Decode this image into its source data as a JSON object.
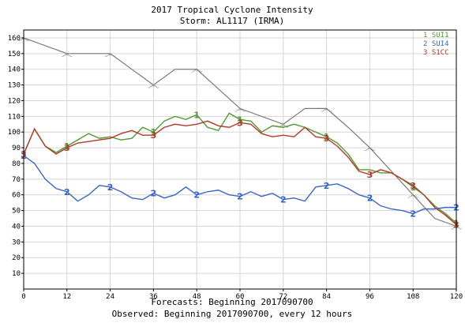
{
  "chart_data": {
    "type": "line",
    "title": "2017 Tropical Cyclone Intensity",
    "subtitle": "Storm: AL1117 (IRMA)",
    "footer_line1": "Forecasts: Beginning 2017090700",
    "footer_line2": "Observed: Beginning 2017090700, every 12 hours",
    "xlim": [
      0,
      120
    ],
    "ylim": [
      0,
      165
    ],
    "x_ticks": [
      0,
      12,
      24,
      36,
      48,
      60,
      72,
      84,
      96,
      108,
      120
    ],
    "y_ticks": [
      10,
      20,
      30,
      40,
      50,
      60,
      70,
      80,
      90,
      100,
      110,
      120,
      130,
      140,
      150,
      160
    ],
    "grid": true,
    "legend_position": "top-right",
    "observed": {
      "color": "#7a7a7a",
      "symbol": "storm-symbol",
      "glyph": "෴",
      "x": [
        0,
        12,
        24,
        36,
        48,
        60,
        72,
        84,
        96,
        108,
        120
      ],
      "y": [
        160,
        150,
        150,
        130,
        140,
        115,
        105,
        115,
        90,
        60,
        40
      ],
      "extra_points": [
        {
          "x": 42,
          "y": 140
        },
        {
          "x": 78,
          "y": 115
        },
        {
          "x": 90,
          "y": 103
        },
        {
          "x": 114,
          "y": 45
        }
      ]
    },
    "series": [
      {
        "name": "SUI1",
        "marker": "1",
        "color": "#4f9a33",
        "x": [
          0,
          3,
          6,
          9,
          12,
          15,
          18,
          21,
          24,
          27,
          30,
          33,
          36,
          39,
          42,
          45,
          48,
          51,
          54,
          57,
          60,
          63,
          66,
          69,
          72,
          75,
          78,
          81,
          84,
          87,
          90,
          93,
          96,
          99,
          102,
          105,
          108,
          111,
          114,
          117,
          120
        ],
        "y": [
          86,
          102,
          91,
          87,
          91,
          95,
          99,
          96,
          97,
          95,
          96,
          103,
          100,
          107,
          110,
          108,
          111,
          103,
          101,
          112,
          108,
          107,
          100,
          104,
          103,
          105,
          103,
          100,
          97,
          93,
          86,
          76,
          76,
          74,
          74,
          70,
          65,
          60,
          53,
          48,
          42
        ]
      },
      {
        "name": "SUI4",
        "marker": "2",
        "color": "#3865c8",
        "x": [
          0,
          3,
          6,
          9,
          12,
          15,
          18,
          21,
          24,
          27,
          30,
          33,
          36,
          39,
          42,
          45,
          48,
          51,
          54,
          57,
          60,
          63,
          66,
          69,
          72,
          75,
          78,
          81,
          84,
          87,
          90,
          93,
          96,
          99,
          102,
          105,
          108,
          111,
          114,
          117,
          120
        ],
        "y": [
          85,
          80,
          70,
          64,
          62,
          56,
          60,
          66,
          65,
          62,
          58,
          57,
          61,
          58,
          60,
          65,
          60,
          62,
          63,
          60,
          59,
          62,
          59,
          61,
          57,
          58,
          56,
          65,
          66,
          67,
          64,
          60,
          58,
          53,
          51,
          50,
          48,
          51,
          51,
          52,
          52
        ]
      },
      {
        "name": "S1CC",
        "marker": "3",
        "color": "#b23a2a",
        "x": [
          0,
          3,
          6,
          9,
          12,
          15,
          18,
          21,
          24,
          27,
          30,
          33,
          36,
          39,
          42,
          45,
          48,
          51,
          54,
          57,
          60,
          63,
          66,
          69,
          72,
          75,
          78,
          81,
          84,
          87,
          90,
          93,
          96,
          99,
          102,
          105,
          108,
          111,
          114,
          117,
          120
        ],
        "y": [
          86,
          102,
          91,
          86,
          90,
          93,
          94,
          95,
          96,
          99,
          101,
          98,
          98,
          103,
          105,
          104,
          105,
          107,
          104,
          103,
          106,
          105,
          99,
          97,
          98,
          97,
          103,
          97,
          96,
          91,
          84,
          75,
          73,
          76,
          74,
          70,
          66,
          60,
          52,
          47,
          41
        ]
      }
    ],
    "marker_points": [
      {
        "series": 0,
        "x": [
          12,
          36,
          48,
          60,
          84,
          108,
          120
        ]
      },
      {
        "series": 1,
        "x": [
          0,
          12,
          24,
          36,
          48,
          60,
          72,
          84,
          96,
          108,
          120
        ]
      },
      {
        "series": 2,
        "x": [
          0,
          12,
          36,
          60,
          84,
          96,
          108,
          120
        ]
      }
    ]
  }
}
